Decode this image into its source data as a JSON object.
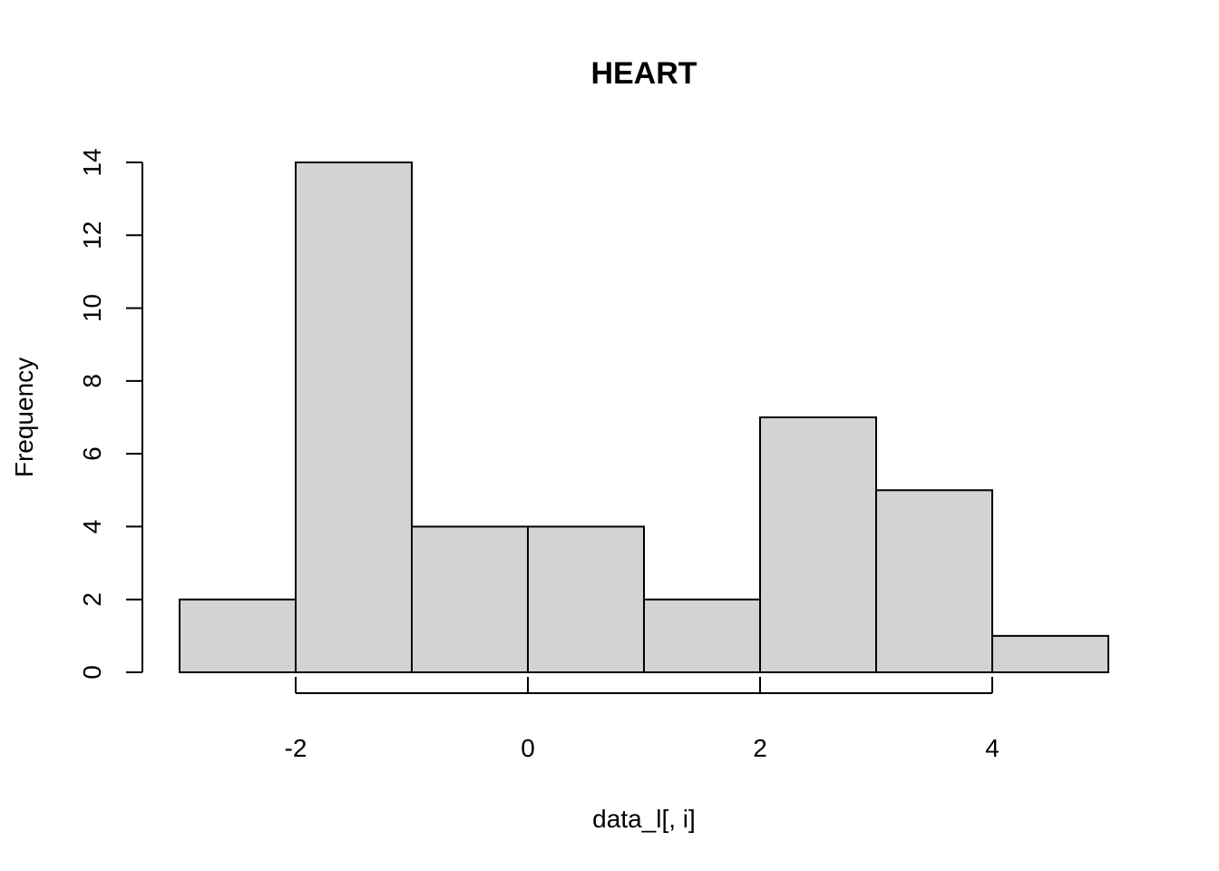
{
  "chart_data": {
    "type": "bar",
    "subtype": "histogram",
    "title": "HEART",
    "xlabel": "data_l[, i]",
    "ylabel": "Frequency",
    "bins": [
      {
        "start": -3,
        "end": -2,
        "count": 2
      },
      {
        "start": -2,
        "end": -1,
        "count": 14
      },
      {
        "start": -1,
        "end": 0,
        "count": 4
      },
      {
        "start": 0,
        "end": 1,
        "count": 4
      },
      {
        "start": 1,
        "end": 2,
        "count": 2
      },
      {
        "start": 2,
        "end": 3,
        "count": 7
      },
      {
        "start": 3,
        "end": 4,
        "count": 5
      },
      {
        "start": 4,
        "end": 5,
        "count": 1
      }
    ],
    "xticks": [
      -2,
      0,
      2,
      4
    ],
    "yticks": [
      0,
      2,
      4,
      6,
      8,
      10,
      12,
      14
    ],
    "xlim": [
      -3,
      5
    ],
    "ylim": [
      0,
      14
    ],
    "bar_color": "#d3d3d3",
    "edge_color": "#000000",
    "grid": false,
    "legend": "none"
  }
}
